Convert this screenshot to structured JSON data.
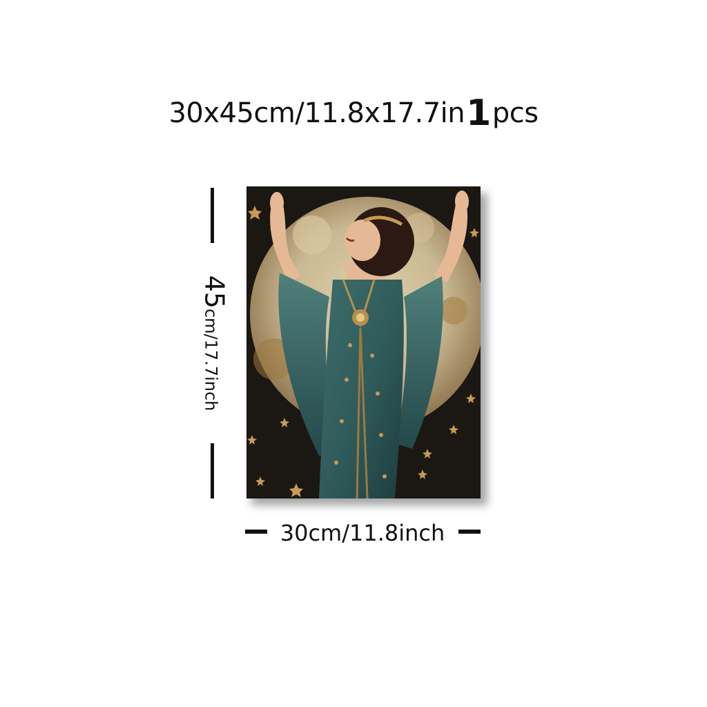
{
  "header": {
    "size_text": "30x45cm/11.8x17.7in",
    "quantity": "1",
    "quantity_unit": "pcs"
  },
  "dimensions": {
    "height_value": "45",
    "height_unit_text": "cm/17.7inch",
    "width_text": "30cm/11.8inch"
  },
  "artwork": {
    "subject": "woman-in-teal-gown-before-full-moon",
    "colors": {
      "background": "#1b1712",
      "moon": "#c9b892",
      "gown": "#2f5a5a",
      "gold": "#b8904a",
      "skin": "#e6b996",
      "hair": "#2a1a12"
    }
  }
}
